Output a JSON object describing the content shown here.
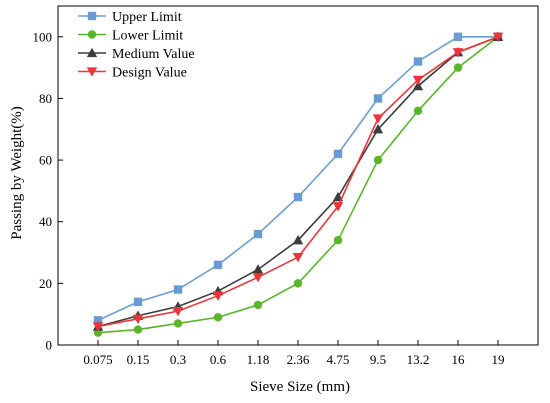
{
  "chart_data": {
    "type": "line",
    "title": "",
    "xlabel": "Sieve Size (mm)",
    "ylabel": "Passing by Weight(%)",
    "categories": [
      "0.075",
      "0.15",
      "0.3",
      "0.6",
      "1.18",
      "2.36",
      "4.75",
      "9.5",
      "13.2",
      "16",
      "19"
    ],
    "ylim": [
      0,
      110
    ],
    "yticks": [
      0,
      20,
      40,
      60,
      80,
      100
    ],
    "grid": false,
    "legend": "top-left",
    "series": [
      {
        "name": "Upper Limit",
        "color": "#6a9bd1",
        "marker": "square",
        "values": [
          8,
          14,
          18,
          26,
          36,
          48,
          62,
          80,
          92,
          100,
          100
        ]
      },
      {
        "name": "Lower Limit",
        "color": "#5ab52a",
        "marker": "circle",
        "values": [
          4,
          5,
          7,
          9,
          13,
          20,
          34,
          60,
          76,
          90,
          100
        ]
      },
      {
        "name": "Medium Value",
        "color": "#3c3c3c",
        "marker": "triangle-up",
        "values": [
          6,
          9.5,
          12.5,
          17.5,
          24.5,
          34,
          48,
          70,
          84,
          95,
          100
        ]
      },
      {
        "name": "Design Value",
        "color": "#f0333a",
        "marker": "triangle-down",
        "values": [
          6,
          8.5,
          11,
          16,
          22,
          28.5,
          45,
          73.5,
          86,
          95,
          100
        ]
      }
    ]
  }
}
